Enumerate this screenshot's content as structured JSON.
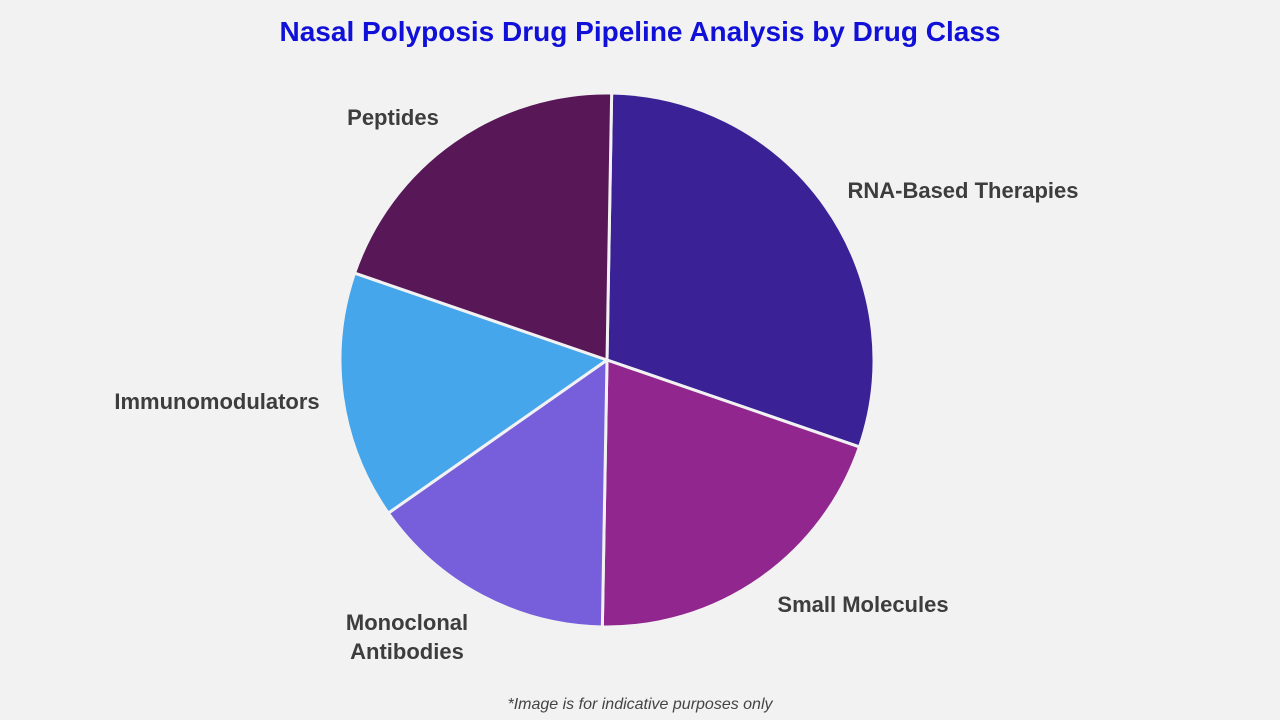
{
  "title": "Nasal Polyposis Drug Pipeline Analysis by Drug Class",
  "footnote": "*Image is for indicative purposes only",
  "chart_data": {
    "type": "pie",
    "title": "Nasal Polyposis Drug Pipeline Analysis by Drug Class",
    "start_angle_deg": 1,
    "direction": "clockwise",
    "slices": [
      {
        "label": "RNA-Based Therapies",
        "value": 30,
        "color": "#3a2296"
      },
      {
        "label": "Small Molecules",
        "value": 20,
        "color": "#91268f"
      },
      {
        "label": "Monoclonal Antibodies",
        "lines": [
          "Monoclonal",
          "Antibodies"
        ],
        "value": 15,
        "color": "#775fdb"
      },
      {
        "label": "Immunomodulators",
        "value": 15,
        "color": "#46a6eb"
      },
      {
        "label": "Peptides",
        "value": 20,
        "color": "#581858"
      }
    ]
  }
}
